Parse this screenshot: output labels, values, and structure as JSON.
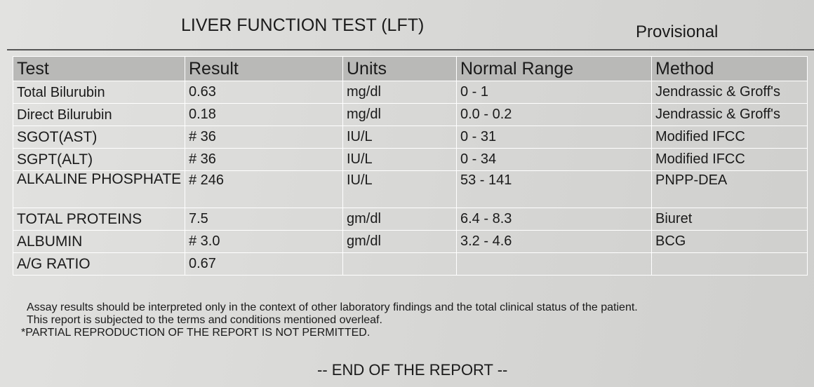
{
  "header": {
    "title": "LIVER FUNCTION TEST (LFT)",
    "status": "Provisional"
  },
  "table": {
    "columns": [
      "Test",
      "Result",
      "Units",
      "Normal Range",
      "Method"
    ],
    "rows": [
      [
        "Total Bilurubin",
        "0.63",
        "mg/dl",
        "0 - 1",
        "Jendrassic & Groff's"
      ],
      [
        "Direct Bilurubin",
        "0.18",
        "mg/dl",
        "0.0 - 0.2",
        "Jendrassic & Groff's"
      ],
      [
        "SGOT(AST)",
        "# 36",
        "IU/L",
        "0 - 31",
        "Modified IFCC"
      ],
      [
        "SGPT(ALT)",
        "# 36",
        "IU/L",
        "0 - 34",
        "Modified IFCC"
      ],
      [
        "ALKALINE PHOSPHATE",
        "# 246",
        "IU/L",
        "53 - 141",
        "PNPP-DEA"
      ],
      [
        "TOTAL PROTEINS",
        "7.5",
        "gm/dl",
        "6.4 - 8.3",
        "Biuret"
      ],
      [
        "ALBUMIN",
        "# 3.0",
        "gm/dl",
        "3.2 - 4.6",
        "BCG"
      ],
      [
        "A/G RATIO",
        "0.67"
      ]
    ]
  },
  "notes": [
    "Assay results should be interpreted only in the context of other laboratory findings and the total clinical status of the patient.",
    "This report is subjected to the terms and conditions mentioned overleaf.",
    "*PARTIAL REPRODUCTION OF THE REPORT IS NOT PERMITTED."
  ],
  "footer": "-- END OF THE REPORT --"
}
